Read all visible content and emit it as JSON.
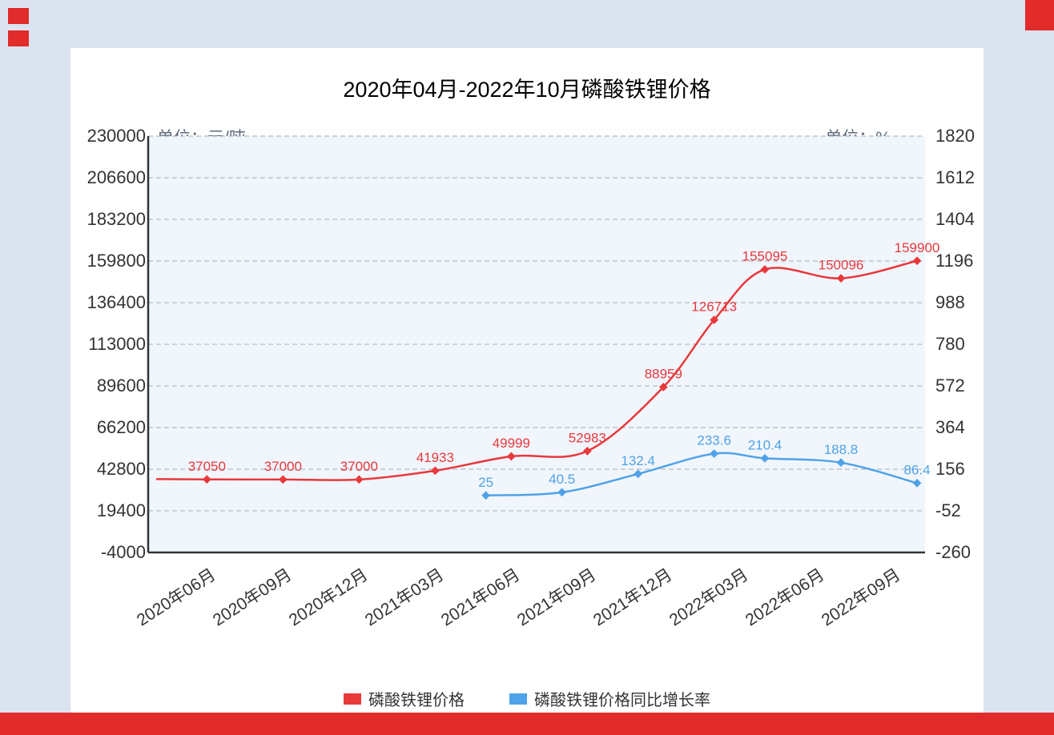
{
  "page": {
    "background_color": "#dbe3f0",
    "accent_red": "#e22b2b",
    "card_color": "#ffffff"
  },
  "title": "2020年04月-2022年10月磷酸铁锂价格",
  "left_axis_unit": "单位：元/吨",
  "right_axis_unit": "单位：%",
  "legend": [
    {
      "label": "磷酸铁锂价格",
      "color": "#e8393b"
    },
    {
      "label": "磷酸铁锂价格同比增长率",
      "color": "#4fa2e8"
    }
  ],
  "chart_data": {
    "type": "line",
    "title": "2020年04月-2022年10月磷酸铁锂价格",
    "x_axis": {
      "start_month": "2020年04月",
      "end_month": "2022年10月",
      "tick_labels": [
        "2020年06月",
        "2020年09月",
        "2020年12月",
        "2021年03月",
        "2021年06月",
        "2021年09月",
        "2021年12月",
        "2022年03月",
        "2022年06月",
        "2022年09月"
      ],
      "tick_month_index": [
        2,
        5,
        8,
        11,
        14,
        17,
        20,
        23,
        26,
        29
      ],
      "month_index_domain": [
        0,
        30
      ]
    },
    "left_axis": {
      "unit": "单位：元/吨",
      "min": -4000,
      "max": 230000,
      "ticks": [
        230000,
        206600,
        183200,
        159800,
        136400,
        113000,
        89600,
        66200,
        42800,
        19400,
        -4000
      ]
    },
    "right_axis": {
      "unit": "单位：%",
      "min": -260,
      "max": 1820,
      "ticks": [
        1820,
        1612,
        1404,
        1196,
        988,
        780,
        572,
        364,
        156,
        -52,
        -260
      ]
    },
    "grid": "horizontal-dashed",
    "legend_position": "bottom",
    "series": [
      {
        "name": "磷酸铁锂价格",
        "axis": "left",
        "color": "#e8393b",
        "points": [
          {
            "m": 0,
            "v": 37200,
            "label": ""
          },
          {
            "m": 2,
            "v": 37050,
            "label": "37050"
          },
          {
            "m": 5,
            "v": 37000,
            "label": "37000"
          },
          {
            "m": 8,
            "v": 37000,
            "label": "37000"
          },
          {
            "m": 11,
            "v": 41933,
            "label": "41933"
          },
          {
            "m": 14,
            "v": 49999,
            "label": "49999"
          },
          {
            "m": 17,
            "v": 52983,
            "label": "52983"
          },
          {
            "m": 20,
            "v": 88959,
            "label": "88959"
          },
          {
            "m": 22,
            "v": 126713,
            "label": "126713"
          },
          {
            "m": 24,
            "v": 155095,
            "label": "155095"
          },
          {
            "m": 27,
            "v": 150096,
            "label": "150096"
          },
          {
            "m": 30,
            "v": 159900,
            "label": "159900"
          }
        ]
      },
      {
        "name": "磷酸铁锂价格同比增长率",
        "axis": "right",
        "color": "#4fa2e8",
        "points": [
          {
            "m": 13,
            "v": 25,
            "label": "25"
          },
          {
            "m": 16,
            "v": 40.5,
            "label": "40.5"
          },
          {
            "m": 19,
            "v": 132.4,
            "label": "132.4"
          },
          {
            "m": 22,
            "v": 233.6,
            "label": "233.6"
          },
          {
            "m": 24,
            "v": 210.4,
            "label": "210.4"
          },
          {
            "m": 27,
            "v": 188.8,
            "label": "188.8"
          },
          {
            "m": 30,
            "v": 86.4,
            "label": "86.4"
          }
        ]
      }
    ]
  }
}
